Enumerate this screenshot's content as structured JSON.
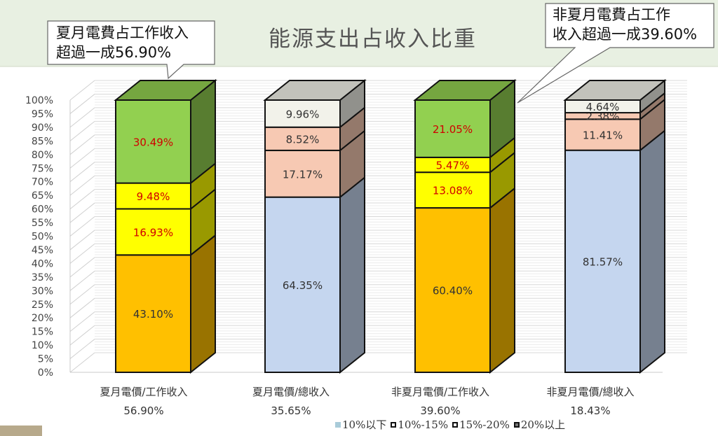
{
  "title": "能源支出占收入比重",
  "callouts": [
    {
      "lines": [
        "夏月電費占工作收入",
        "超過一成56.90%"
      ]
    },
    {
      "lines": [
        "非夏月電費占工作",
        "收入超過一成39.60%"
      ]
    }
  ],
  "colors": {
    "header_band": "#e8f0e2",
    "left_accent": "#b7a98b"
  },
  "chart_data": {
    "type": "bar",
    "stacked": true,
    "three_d": true,
    "categories": [
      "夏月電價/工作收入",
      "夏月電價/總收入",
      "非夏月電價/工作收入",
      "非夏月電價/總收入"
    ],
    "category_totals": [
      "56.90%",
      "35.65%",
      "39.60%",
      "18.43%"
    ],
    "ylim": [
      0,
      100
    ],
    "yticks": [
      "0%",
      "5%",
      "10%",
      "15%",
      "20%",
      "25%",
      "30%",
      "35%",
      "40%",
      "45%",
      "50%",
      "55%",
      "60%",
      "65%",
      "70%",
      "75%",
      "80%",
      "85%",
      "90%",
      "95%",
      "100%"
    ],
    "legend": [
      "10%以下",
      "10%-15%",
      "15%-20%",
      "20%以上"
    ],
    "series": [
      {
        "name": "10%以下",
        "values": [
          43.1,
          64.35,
          60.4,
          81.57
        ],
        "labels": [
          "43.10%",
          "64.35%",
          "60.40%",
          "81.57%"
        ]
      },
      {
        "name": "10%-15%",
        "values": [
          16.93,
          17.17,
          13.08,
          11.41
        ],
        "labels": [
          "16.93%",
          "17.17%",
          "13.08%",
          "11.41%"
        ]
      },
      {
        "name": "15%-20%",
        "values": [
          9.48,
          8.52,
          5.47,
          2.38
        ],
        "labels": [
          "9.48%",
          "8.52%",
          "5.47%",
          "2.38%"
        ]
      },
      {
        "name": "20%以上",
        "values": [
          30.49,
          9.96,
          21.05,
          4.64
        ],
        "labels": [
          "30.49%",
          "9.96%",
          "21.05%",
          "4.64%"
        ]
      }
    ],
    "bar_colors": [
      [
        "#ffc000",
        "#ffff00",
        "#ffff00",
        "#92d050"
      ],
      [
        "#c5d6ef",
        "#f7c9b3",
        "#f7c9b3",
        "#f2f2ea"
      ],
      [
        "#ffc000",
        "#ffff00",
        "#ffff00",
        "#92d050"
      ],
      [
        "#c5d6ef",
        "#f7c9b3",
        "#f7c9b3",
        "#f2f2ea"
      ]
    ],
    "label_colors": [
      [
        "#333333",
        "#d00000",
        "#d00000",
        "#d00000"
      ],
      [
        "#333333",
        "#333333",
        "#333333",
        "#333333"
      ],
      [
        "#333333",
        "#d00000",
        "#d00000",
        "#d00000"
      ],
      [
        "#333333",
        "#333333",
        "#333333",
        "#333333"
      ]
    ],
    "legend_colors": [
      "#a9cbd9",
      "#ffffff",
      "#ffffff",
      "#ffffff"
    ]
  }
}
